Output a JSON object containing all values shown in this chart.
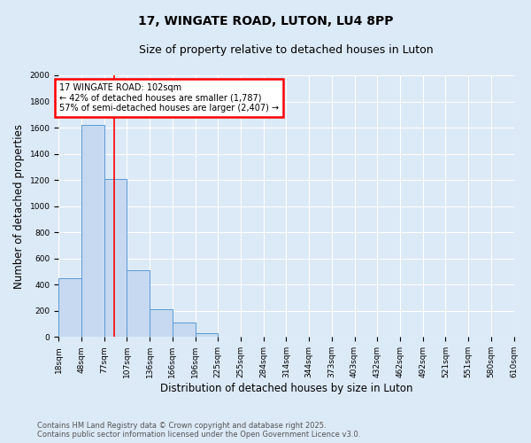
{
  "title": "17, WINGATE ROAD, LUTON, LU4 8PP",
  "subtitle": "Size of property relative to detached houses in Luton",
  "xlabel": "Distribution of detached houses by size in Luton",
  "ylabel": "Number of detached properties",
  "bin_labels": [
    "18sqm",
    "48sqm",
    "77sqm",
    "107sqm",
    "136sqm",
    "166sqm",
    "196sqm",
    "225sqm",
    "255sqm",
    "284sqm",
    "314sqm",
    "344sqm",
    "373sqm",
    "403sqm",
    "432sqm",
    "462sqm",
    "492sqm",
    "521sqm",
    "551sqm",
    "580sqm",
    "610sqm"
  ],
  "bar_values": [
    450,
    1620,
    1210,
    510,
    215,
    110,
    30,
    0,
    0,
    0,
    0,
    0,
    0,
    0,
    0,
    0,
    0,
    0,
    0,
    0
  ],
  "bar_color": "#c6d9f0",
  "bar_edge_color": "#5b9bd5",
  "property_line_bin": 2.45,
  "property_line_label": "17 WINGATE ROAD: 102sqm",
  "annotation_line1": "← 42% of detached houses are smaller (1,787)",
  "annotation_line2": "57% of semi-detached houses are larger (2,407) →",
  "ylim": [
    0,
    2000
  ],
  "yticks": [
    0,
    200,
    400,
    600,
    800,
    1000,
    1200,
    1400,
    1600,
    1800,
    2000
  ],
  "background_color": "#dce9f7",
  "grid_color": "#ffffff",
  "footnote1": "Contains HM Land Registry data © Crown copyright and database right 2025.",
  "footnote2": "Contains public sector information licensed under the Open Government Licence v3.0.",
  "title_fontsize": 10,
  "subtitle_fontsize": 9,
  "axis_label_fontsize": 8.5,
  "tick_fontsize": 6.5
}
